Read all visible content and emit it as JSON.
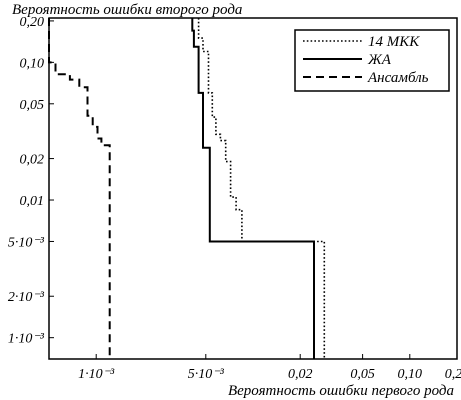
{
  "chart_data": {
    "type": "line",
    "title": "",
    "ylabel": "Вероятность ошибки второго рода",
    "xlabel": "Вероятность ошибки первого рода",
    "x_scale": "log",
    "y_scale": "log",
    "xlim": [
      0.0005,
      0.2
    ],
    "ylim": [
      0.0007,
      0.21
    ],
    "x_ticks": [
      {
        "value": 0.001,
        "label": "1·10⁻³"
      },
      {
        "value": 0.005,
        "label": "5·10⁻³"
      },
      {
        "value": 0.02,
        "label": "0,02"
      },
      {
        "value": 0.05,
        "label": "0,05"
      },
      {
        "value": 0.1,
        "label": "0,10"
      },
      {
        "value": 0.2,
        "label": "0,20"
      }
    ],
    "y_ticks": [
      {
        "value": 0.2,
        "label": "0,20"
      },
      {
        "value": 0.1,
        "label": "0,10"
      },
      {
        "value": 0.05,
        "label": "0,05"
      },
      {
        "value": 0.02,
        "label": "0,02"
      },
      {
        "value": 0.01,
        "label": "0,01"
      },
      {
        "value": 0.005,
        "label": "5·10⁻³"
      },
      {
        "value": 0.002,
        "label": "2·10⁻³"
      },
      {
        "value": 0.001,
        "label": "1·10⁻³"
      }
    ],
    "grid": false,
    "legend_position": "top-right",
    "series": [
      {
        "name": "14 МКК",
        "style": "dotted",
        "x": [
          0.0045,
          0.0045,
          0.0048,
          0.0048,
          0.0052,
          0.0052,
          0.0055,
          0.0055,
          0.0058,
          0.0058,
          0.0062,
          0.0062,
          0.0067,
          0.0067,
          0.0072,
          0.0072,
          0.0078,
          0.0078,
          0.0085,
          0.0085,
          0.011,
          0.011,
          0.0285,
          0.0285
        ],
        "y": [
          0.21,
          0.15,
          0.15,
          0.12,
          0.12,
          0.06,
          0.06,
          0.04,
          0.04,
          0.03,
          0.03,
          0.027,
          0.027,
          0.019,
          0.019,
          0.0105,
          0.0105,
          0.0085,
          0.0085,
          0.005,
          0.005,
          0.005,
          0.005,
          0.0007
        ]
      },
      {
        "name": "ЖА",
        "style": "solid",
        "x": [
          0.0041,
          0.0041,
          0.0042,
          0.0042,
          0.0045,
          0.0045,
          0.0048,
          0.0048,
          0.0053,
          0.0053,
          0.0245,
          0.0245
        ],
        "y": [
          0.21,
          0.17,
          0.17,
          0.13,
          0.13,
          0.06,
          0.06,
          0.024,
          0.024,
          0.005,
          0.005,
          0.0007
        ]
      },
      {
        "name": "Ансамбль",
        "style": "dashed",
        "x": [
          0.0005,
          0.0005,
          0.00055,
          0.00055,
          0.00068,
          0.00068,
          0.00078,
          0.00078,
          0.00088,
          0.00088,
          0.00095,
          0.00095,
          0.00102,
          0.00102,
          0.00108,
          0.00108,
          0.00114,
          0.00114,
          0.00122,
          0.00122
        ],
        "y": [
          0.21,
          0.1,
          0.1,
          0.082,
          0.082,
          0.075,
          0.075,
          0.066,
          0.066,
          0.041,
          0.041,
          0.034,
          0.034,
          0.028,
          0.028,
          0.025,
          0.025,
          0.025,
          0.025,
          0.0007
        ]
      }
    ]
  }
}
